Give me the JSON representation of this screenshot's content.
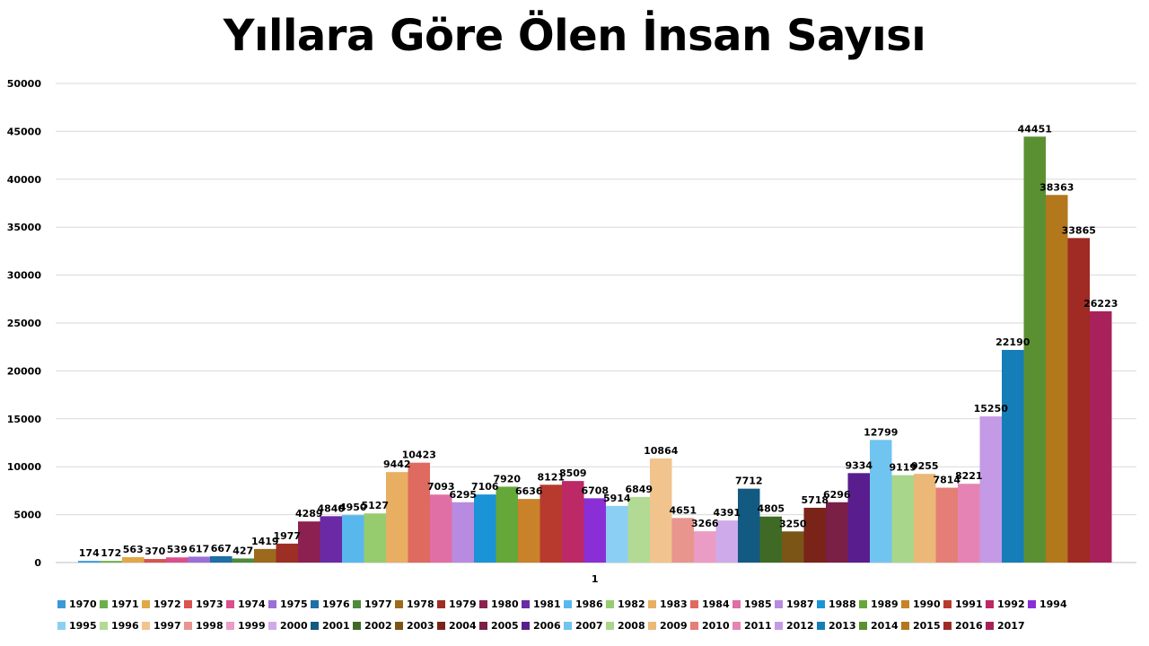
{
  "chart_data": {
    "type": "bar",
    "title": "Yıllara Göre Ölen İnsan Sayısı",
    "xlabel": "",
    "ylabel": "",
    "categories": [
      "1"
    ],
    "ylim": [
      0,
      50000
    ],
    "yticks": [
      0,
      5000,
      10000,
      15000,
      20000,
      25000,
      30000,
      35000,
      40000,
      45000,
      50000
    ],
    "grid": true,
    "legend_position": "bottom",
    "series": [
      {
        "name": "1970",
        "values": [
          174
        ],
        "color": "#3a9ad9"
      },
      {
        "name": "1971",
        "values": [
          172
        ],
        "color": "#6ab04c"
      },
      {
        "name": "1972",
        "values": [
          563
        ],
        "color": "#e1a847"
      },
      {
        "name": "1973",
        "values": [
          370
        ],
        "color": "#d9534f"
      },
      {
        "name": "1974",
        "values": [
          539
        ],
        "color": "#d9508a"
      },
      {
        "name": "1975",
        "values": [
          617
        ],
        "color": "#9b6fd6"
      },
      {
        "name": "1976",
        "values": [
          667
        ],
        "color": "#1d6fa5"
      },
      {
        "name": "1977",
        "values": [
          427
        ],
        "color": "#4e8a3a"
      },
      {
        "name": "1978",
        "values": [
          1419
        ],
        "color": "#9c6a1c"
      },
      {
        "name": "1979",
        "values": [
          1977
        ],
        "color": "#9c2e25"
      },
      {
        "name": "1980",
        "values": [
          4289
        ],
        "color": "#8c2050"
      },
      {
        "name": "1981",
        "values": [
          4840
        ],
        "color": "#6a2aa6"
      },
      {
        "name": "1986",
        "values": [
          4950
        ],
        "color": "#58b8ee"
      },
      {
        "name": "1982",
        "values": [
          5127
        ],
        "color": "#96cc6e"
      },
      {
        "name": "1983",
        "values": [
          9442
        ],
        "color": "#e8ae62"
      },
      {
        "name": "1984",
        "values": [
          10423
        ],
        "color": "#de6a60"
      },
      {
        "name": "1985",
        "values": [
          7093
        ],
        "color": "#df6fa4"
      },
      {
        "name": "1987",
        "values": [
          6295
        ],
        "color": "#b88ae0"
      },
      {
        "name": "1988",
        "values": [
          7106
        ],
        "color": "#1a94d6"
      },
      {
        "name": "1989",
        "values": [
          7920
        ],
        "color": "#66a73a"
      },
      {
        "name": "1990",
        "values": [
          6636
        ],
        "color": "#c9822a"
      },
      {
        "name": "1991",
        "values": [
          8121
        ],
        "color": "#b83a2e"
      },
      {
        "name": "1992",
        "values": [
          8509
        ],
        "color": "#bd2866"
      },
      {
        "name": "1994",
        "values": [
          6708
        ],
        "color": "#8a2fd6"
      },
      {
        "name": "1995",
        "values": [
          5914
        ],
        "color": "#8ccff4"
      },
      {
        "name": "1996",
        "values": [
          6849
        ],
        "color": "#b2da94"
      },
      {
        "name": "1997",
        "values": [
          10864
        ],
        "color": "#f0c48c"
      },
      {
        "name": "1998",
        "values": [
          4651
        ],
        "color": "#e8958e"
      },
      {
        "name": "1999",
        "values": [
          3266
        ],
        "color": "#eb9cc4"
      },
      {
        "name": "2000",
        "values": [
          4391
        ],
        "color": "#cfaaea"
      },
      {
        "name": "2001",
        "values": [
          7712
        ],
        "color": "#135a82"
      },
      {
        "name": "2002",
        "values": [
          4805
        ],
        "color": "#3f6a26"
      },
      {
        "name": "2003",
        "values": [
          3250
        ],
        "color": "#7a5516"
      },
      {
        "name": "2004",
        "values": [
          5718
        ],
        "color": "#7a2318"
      },
      {
        "name": "2005",
        "values": [
          6296
        ],
        "color": "#7a1f45"
      },
      {
        "name": "2006",
        "values": [
          9334
        ],
        "color": "#5a1d8e"
      },
      {
        "name": "2007",
        "values": [
          12799
        ],
        "color": "#70c4f0"
      },
      {
        "name": "2008",
        "values": [
          9119
        ],
        "color": "#a8d68a"
      },
      {
        "name": "2009",
        "values": [
          9255
        ],
        "color": "#ecb878"
      },
      {
        "name": "2010",
        "values": [
          7814
        ],
        "color": "#e47e76"
      },
      {
        "name": "2011",
        "values": [
          8221
        ],
        "color": "#e584b4"
      },
      {
        "name": "2012",
        "values": [
          15250
        ],
        "color": "#c49ae6"
      },
      {
        "name": "2013",
        "values": [
          22190
        ],
        "color": "#157db8"
      },
      {
        "name": "2014",
        "values": [
          44451
        ],
        "color": "#5a9032"
      },
      {
        "name": "2015",
        "values": [
          38363
        ],
        "color": "#b3771c"
      },
      {
        "name": "2016",
        "values": [
          33865
        ],
        "color": "#a02a24"
      },
      {
        "name": "2017",
        "values": [
          26223
        ],
        "color": "#a8215a"
      }
    ]
  }
}
